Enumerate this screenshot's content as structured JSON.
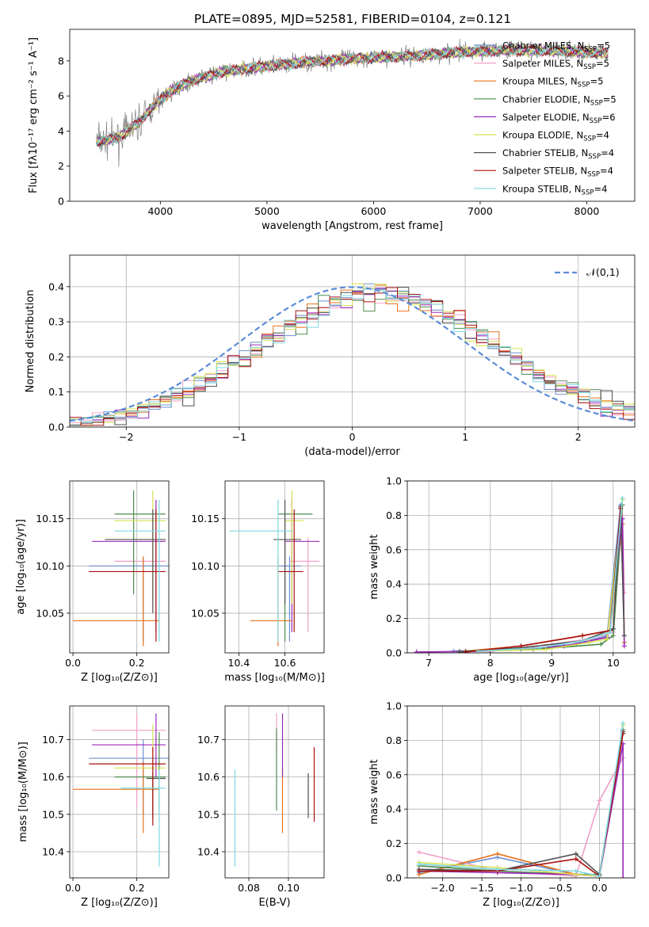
{
  "figure": {
    "title": "PLATE=0895, MJD=52581, FIBERID=0104, z=0.121"
  },
  "colors": {
    "Chabrier MILES": "#6b8fcf",
    "Salpeter MILES": "#f0a0c8",
    "Kroupa MILES": "#e8731c",
    "Chabrier ELODIE": "#4f8b4f",
    "Salpeter ELODIE": "#9a28b8",
    "Kroupa ELODIE": "#d8e050",
    "Chabrier STELIB": "#505050",
    "Salpeter STELIB": "#a81010",
    "Kroupa STELIB": "#7fd8e0",
    "data": "#808080",
    "normal": "#5b8cd8"
  },
  "chart_data": [
    {
      "id": "spectrum",
      "type": "line",
      "xlabel": "wavelength [Angstrom, rest frame]",
      "ylabel": "Flux [fλ10⁻¹⁷ erg cm⁻² s⁻¹ A⁻¹]",
      "xlim": [
        3150,
        8450
      ],
      "ylim": [
        0,
        9.8
      ],
      "xticks": [
        4000,
        5000,
        6000,
        7000,
        8000
      ],
      "yticks": [
        0,
        2,
        4,
        6,
        8
      ],
      "grid": false,
      "legend": "top-right",
      "series": [
        {
          "name": "Chabrier MILES, N_SSP=5"
        },
        {
          "name": "Salpeter MILES, N_SSP=5"
        },
        {
          "name": "Kroupa MILES, N_SSP=5"
        },
        {
          "name": "Chabrier ELODIE, N_SSP=5"
        },
        {
          "name": "Salpeter ELODIE, N_SSP=6"
        },
        {
          "name": "Kroupa ELODIE, N_SSP=4"
        },
        {
          "name": "Chabrier STELIB, N_SSP=4"
        },
        {
          "name": "Salpeter STELIB, N_SSP=4"
        },
        {
          "name": "Kroupa STELIB, N_SSP=4"
        }
      ],
      "continuum": {
        "x": [
          3400,
          3600,
          3800,
          3950,
          4100,
          4300,
          4600,
          5000,
          5500,
          6000,
          6400,
          6800,
          7200,
          7600,
          8000,
          8200
        ],
        "y": [
          3.4,
          3.6,
          4.5,
          5.5,
          6.3,
          6.9,
          7.4,
          7.7,
          8.0,
          8.2,
          8.3,
          8.5,
          8.6,
          8.6,
          8.5,
          8.4
        ]
      }
    },
    {
      "id": "residuals",
      "type": "bar",
      "xlabel": "(data-model)/error",
      "ylabel": "Normed distribution",
      "xlim": [
        -2.5,
        2.5
      ],
      "ylim": [
        0,
        0.49
      ],
      "xticks": [
        -2,
        -1,
        0,
        1,
        2
      ],
      "yticks": [
        0.0,
        0.1,
        0.2,
        0.3,
        0.4
      ],
      "grid": true,
      "legend": "top-right",
      "legend_label": "𝒩(0,1)",
      "bin_width": 0.1,
      "bin_start": -2.5
    },
    {
      "id": "age_vs_Z",
      "type": "scatter",
      "xlabel": "Z [log₁₀(Z/Z⊙)]",
      "ylabel": "age  [log₁₀(age/yr)]",
      "xlim": [
        -0.01,
        0.3
      ],
      "ylim": [
        10.008,
        10.19
      ],
      "xticks": [
        0.0,
        0.2
      ],
      "yticks": [
        10.05,
        10.1,
        10.15
      ],
      "grid": true,
      "points": [
        {
          "s": "Chabrier MILES",
          "x": 0.22,
          "y": 10.1,
          "xlo": 0.05,
          "xhi": 0.3,
          "ylo": 10.02,
          "yhi": 10.11
        },
        {
          "s": "Salpeter MILES",
          "x": 0.27,
          "y": 10.105,
          "xlo": 0.13,
          "xhi": 0.29,
          "ylo": 10.03,
          "yhi": 10.13
        },
        {
          "s": "Kroupa MILES",
          "x": 0.22,
          "y": 10.042,
          "xlo": 0.0,
          "xhi": 0.27,
          "ylo": 10.015,
          "yhi": 10.11
        },
        {
          "s": "Chabrier ELODIE",
          "x": 0.19,
          "y": 10.155,
          "xlo": 0.13,
          "xhi": 0.29,
          "ylo": 10.07,
          "yhi": 10.18
        },
        {
          "s": "Salpeter ELODIE",
          "x": 0.26,
          "y": 10.126,
          "xlo": 0.06,
          "xhi": 0.29,
          "ylo": 10.03,
          "yhi": 10.17
        },
        {
          "s": "Kroupa ELODIE",
          "x": 0.25,
          "y": 10.148,
          "xlo": 0.13,
          "xhi": 0.29,
          "ylo": 10.06,
          "yhi": 10.18
        },
        {
          "s": "Chabrier STELIB",
          "x": 0.25,
          "y": 10.128,
          "xlo": 0.1,
          "xhi": 0.29,
          "ylo": 10.05,
          "yhi": 10.16
        },
        {
          "s": "Salpeter STELIB",
          "x": 0.26,
          "y": 10.094,
          "xlo": 0.05,
          "xhi": 0.29,
          "ylo": 10.02,
          "yhi": 10.16
        },
        {
          "s": "Kroupa STELIB",
          "x": 0.27,
          "y": 10.137,
          "xlo": 0.13,
          "xhi": 0.29,
          "ylo": 10.02,
          "yhi": 10.17
        }
      ]
    },
    {
      "id": "age_vs_mass",
      "type": "scatter",
      "xlabel": "mass [log₁₀(M/M⊙)]",
      "ylabel": "",
      "xlim": [
        10.34,
        10.77
      ],
      "ylim": [
        10.008,
        10.19
      ],
      "xticks": [
        10.4,
        10.6
      ],
      "yticks": [
        10.05,
        10.1,
        10.15
      ],
      "grid": true,
      "points": [
        {
          "s": "Chabrier MILES",
          "x": 10.62,
          "y": 10.1,
          "xlo": 10.57,
          "xhi": 10.67,
          "ylo": 10.02,
          "yhi": 10.11
        },
        {
          "s": "Salpeter MILES",
          "x": 10.7,
          "y": 10.105,
          "xlo": 10.62,
          "xhi": 10.75,
          "ylo": 10.03,
          "yhi": 10.13
        },
        {
          "s": "Kroupa MILES",
          "x": 10.57,
          "y": 10.042,
          "xlo": 10.45,
          "xhi": 10.63,
          "ylo": 10.015,
          "yhi": 10.11
        },
        {
          "s": "Chabrier ELODIE",
          "x": 10.6,
          "y": 10.155,
          "xlo": 10.57,
          "xhi": 10.72,
          "ylo": 10.02,
          "yhi": 10.15
        },
        {
          "s": "Salpeter ELODIE",
          "x": 10.63,
          "y": 10.126,
          "xlo": 10.6,
          "xhi": 10.75,
          "ylo": 10.03,
          "yhi": 10.17
        },
        {
          "s": "Kroupa ELODIE",
          "x": 10.63,
          "y": 10.148,
          "xlo": 10.6,
          "xhi": 10.68,
          "ylo": 10.06,
          "yhi": 10.18
        },
        {
          "s": "Chabrier STELIB",
          "x": 10.6,
          "y": 10.128,
          "xlo": 10.55,
          "xhi": 10.67,
          "ylo": 10.06,
          "yhi": 10.17
        },
        {
          "s": "Salpeter STELIB",
          "x": 10.64,
          "y": 10.094,
          "xlo": 10.57,
          "xhi": 10.68,
          "ylo": 10.03,
          "yhi": 10.16
        },
        {
          "s": "Kroupa STELIB",
          "x": 10.57,
          "y": 10.137,
          "xlo": 10.36,
          "xhi": 10.63,
          "ylo": 10.02,
          "yhi": 10.17
        }
      ]
    },
    {
      "id": "weight_vs_age",
      "type": "line",
      "xlabel": "age  [log₁₀(age/yr)]",
      "ylabel": "mass weight",
      "xlim": [
        6.65,
        10.35
      ],
      "ylim": [
        0,
        1.0
      ],
      "xticks": [
        7,
        8,
        9,
        10
      ],
      "yticks": [
        0.0,
        0.2,
        0.4,
        0.6,
        0.8,
        1.0
      ],
      "grid": true,
      "series": [
        {
          "s": "Chabrier MILES",
          "x": [
            7.4,
            8.5,
            9.4,
            9.9,
            10.12,
            10.18
          ],
          "y": [
            0.01,
            0.02,
            0.05,
            0.1,
            0.86,
            0.1
          ]
        },
        {
          "s": "Salpeter MILES",
          "x": [
            7.5,
            8.6,
            9.6,
            10.0,
            10.15,
            10.18
          ],
          "y": [
            0.005,
            0.03,
            0.08,
            0.12,
            0.8,
            0.35
          ]
        },
        {
          "s": "Kroupa MILES",
          "x": [
            7.6,
            8.5,
            9.5,
            9.95,
            10.15,
            10.18
          ],
          "y": [
            0.01,
            0.04,
            0.1,
            0.13,
            0.75,
            0.06
          ]
        },
        {
          "s": "Chabrier ELODIE",
          "x": [
            7.5,
            8.7,
            9.8,
            10.0,
            10.15
          ],
          "y": [
            0.01,
            0.02,
            0.05,
            0.1,
            0.86
          ]
        },
        {
          "s": "Salpeter ELODIE",
          "x": [
            6.8,
            8.0,
            9.2,
            9.9,
            10.15,
            10.18
          ],
          "y": [
            0.005,
            0.01,
            0.04,
            0.09,
            0.78,
            0.04
          ]
        },
        {
          "s": "Kroupa ELODIE",
          "x": [
            7.8,
            8.9,
            9.6,
            9.9,
            10.15
          ],
          "y": [
            0.01,
            0.02,
            0.06,
            0.08,
            0.89
          ]
        },
        {
          "s": "Chabrier STELIB",
          "x": [
            7.5,
            8.5,
            9.5,
            10.0,
            10.12,
            10.18
          ],
          "y": [
            0.005,
            0.03,
            0.07,
            0.14,
            0.85,
            0.1
          ]
        },
        {
          "s": "Salpeter STELIB",
          "x": [
            7.6,
            8.5,
            9.5,
            9.95,
            10.12
          ],
          "y": [
            0.005,
            0.04,
            0.1,
            0.13,
            0.84
          ]
        },
        {
          "s": "Kroupa STELIB",
          "x": [
            7.8,
            8.8,
            9.5,
            9.95,
            10.15
          ],
          "y": [
            0.01,
            0.03,
            0.07,
            0.12,
            0.9
          ]
        }
      ]
    },
    {
      "id": "mass_vs_Z",
      "type": "scatter",
      "xlabel": "Z [log₁₀(Z/Z⊙)]",
      "ylabel": "mass [log₁₀(M/M⊙)]",
      "xlim": [
        -0.01,
        0.3
      ],
      "ylim": [
        10.33,
        10.79
      ],
      "xticks": [
        0.0,
        0.2
      ],
      "yticks": [
        10.4,
        10.5,
        10.6,
        10.7
      ],
      "grid": true,
      "points": [
        {
          "s": "Chabrier MILES",
          "x": 0.22,
          "y": 10.65,
          "xlo": 0.05,
          "xhi": 0.3,
          "ylo": 10.5,
          "yhi": 10.7
        },
        {
          "s": "Salpeter MILES",
          "x": 0.2,
          "y": 10.725,
          "xlo": 0.06,
          "xhi": 0.29,
          "ylo": 10.52,
          "yhi": 10.77
        },
        {
          "s": "Kroupa MILES",
          "x": 0.22,
          "y": 10.567,
          "xlo": 0.0,
          "xhi": 0.27,
          "ylo": 10.45,
          "yhi": 10.64
        },
        {
          "s": "Chabrier ELODIE",
          "x": 0.27,
          "y": 10.6,
          "xlo": 0.13,
          "xhi": 0.29,
          "ylo": 10.51,
          "yhi": 10.72
        },
        {
          "s": "Salpeter ELODIE",
          "x": 0.26,
          "y": 10.686,
          "xlo": 0.06,
          "xhi": 0.29,
          "ylo": 10.6,
          "yhi": 10.77
        },
        {
          "s": "Kroupa ELODIE",
          "x": 0.25,
          "y": 10.624,
          "xlo": 0.13,
          "xhi": 0.29,
          "ylo": 10.52,
          "yhi": 10.74
        },
        {
          "s": "Chabrier STELIB",
          "x": 0.25,
          "y": 10.596,
          "xlo": 0.23,
          "xhi": 0.29,
          "ylo": 10.49,
          "yhi": 10.61
        },
        {
          "s": "Salpeter STELIB",
          "x": 0.25,
          "y": 10.635,
          "xlo": 0.05,
          "xhi": 0.29,
          "ylo": 10.47,
          "yhi": 10.68
        },
        {
          "s": "Kroupa STELIB",
          "x": 0.27,
          "y": 10.57,
          "xlo": 0.15,
          "xhi": 0.29,
          "ylo": 10.36,
          "yhi": 10.62
        }
      ]
    },
    {
      "id": "mass_vs_ebv",
      "type": "scatter",
      "xlabel": "E(B-V)",
      "ylabel": "",
      "xlim": [
        0.068,
        0.118
      ],
      "ylim": [
        10.33,
        10.79
      ],
      "xticks": [
        0.08,
        0.1
      ],
      "yticks": [
        10.4,
        10.5,
        10.6,
        10.7
      ],
      "grid": true,
      "points": [
        {
          "s": "Salpeter MILES",
          "x": 0.094,
          "y": 10.715,
          "ylo": 10.66,
          "yhi": 10.77
        },
        {
          "s": "Kroupa MILES",
          "x": 0.097,
          "y": 10.56,
          "ylo": 10.45,
          "yhi": 10.62
        },
        {
          "s": "Chabrier ELODIE",
          "x": 0.094,
          "y": 10.62,
          "ylo": 10.51,
          "yhi": 10.73
        },
        {
          "s": "Salpeter ELODIE",
          "x": 0.097,
          "y": 10.69,
          "ylo": 10.6,
          "yhi": 10.77
        },
        {
          "s": "Chabrier STELIB",
          "x": 0.11,
          "y": 10.55,
          "ylo": 10.49,
          "yhi": 10.61
        },
        {
          "s": "Salpeter STELIB",
          "x": 0.113,
          "y": 10.58,
          "ylo": 10.48,
          "yhi": 10.68
        },
        {
          "s": "Kroupa STELIB",
          "x": 0.073,
          "y": 10.49,
          "ylo": 10.36,
          "yhi": 10.62
        }
      ]
    },
    {
      "id": "weight_vs_Z",
      "type": "line",
      "xlabel": "Z [log₁₀(Z/Z⊙)]",
      "ylabel": "mass weight",
      "xlim": [
        -2.45,
        0.45
      ],
      "ylim": [
        0,
        1.0
      ],
      "xticks": [
        -2.0,
        -1.5,
        -1.0,
        -0.5,
        0.0
      ],
      "yticks": [
        0.0,
        0.2,
        0.4,
        0.6,
        0.8,
        1.0
      ],
      "grid": true,
      "series": [
        {
          "s": "Chabrier MILES",
          "x": [
            -2.3,
            -1.3,
            -0.3,
            0.0,
            0.3
          ],
          "y": [
            0.03,
            0.12,
            0.02,
            0.01,
            0.86
          ]
        },
        {
          "s": "Salpeter MILES",
          "x": [
            -2.3,
            -1.3,
            -0.3,
            0.0,
            0.3
          ],
          "y": [
            0.15,
            0.04,
            0.01,
            0.45,
            0.7
          ]
        },
        {
          "s": "Kroupa MILES",
          "x": [
            -2.3,
            -1.3,
            -0.3,
            0.0,
            0.3
          ],
          "y": [
            0.02,
            0.14,
            0.02,
            0.01,
            0.85
          ]
        },
        {
          "s": "Chabrier ELODIE",
          "x": [
            -2.3,
            -1.3,
            -0.3,
            0.0,
            0.3
          ],
          "y": [
            0.07,
            0.04,
            0.02,
            0.02,
            0.86
          ]
        },
        {
          "s": "Salpeter ELODIE",
          "x": [
            -2.3,
            -1.3,
            -0.3,
            0.0,
            0.3,
            0.3
          ],
          "y": [
            0.04,
            0.03,
            0.02,
            0.01,
            0.78,
            0.0
          ]
        },
        {
          "s": "Kroupa ELODIE",
          "x": [
            -2.3,
            -1.3,
            -0.3,
            0.0,
            0.3
          ],
          "y": [
            0.09,
            0.06,
            0.02,
            0.01,
            0.89
          ]
        },
        {
          "s": "Chabrier STELIB",
          "x": [
            -2.3,
            -1.3,
            -0.3,
            0.0,
            0.3
          ],
          "y": [
            0.05,
            0.04,
            0.14,
            0.02,
            0.85
          ]
        },
        {
          "s": "Salpeter STELIB",
          "x": [
            -2.3,
            -1.3,
            -0.3,
            0.0,
            0.3
          ],
          "y": [
            0.04,
            0.04,
            0.11,
            0.01,
            0.84
          ]
        },
        {
          "s": "Kroupa STELIB",
          "x": [
            -2.3,
            -1.3,
            -0.3,
            0.0,
            0.3
          ],
          "y": [
            0.08,
            0.05,
            0.04,
            0.01,
            0.9
          ]
        }
      ]
    }
  ]
}
